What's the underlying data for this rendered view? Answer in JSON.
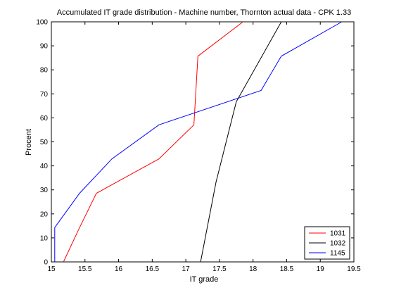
{
  "chart_data": {
    "type": "line",
    "title": "Accumulated IT grade distribution - Machine number, Thornton actual data - CPK 1.33",
    "xlabel": "IT grade",
    "ylabel": "Procent",
    "xlim": [
      15,
      19.5
    ],
    "ylim": [
      0,
      100
    ],
    "xticks": [
      "15",
      "15.5",
      "16",
      "16.5",
      "17",
      "17.5",
      "18",
      "18.5",
      "19",
      "19.5"
    ],
    "yticks": [
      "0",
      "10",
      "20",
      "30",
      "40",
      "50",
      "60",
      "70",
      "80",
      "90",
      "100"
    ],
    "grid": false,
    "legend_position": "bottom-right",
    "series": [
      {
        "name": "1031",
        "color": "#ff0000",
        "points": [
          [
            15.18,
            0
          ],
          [
            15.42,
            14.3
          ],
          [
            15.67,
            28.6
          ],
          [
            16.6,
            42.9
          ],
          [
            17.12,
            57.1
          ],
          [
            17.18,
            85.7
          ],
          [
            17.85,
            100
          ]
        ]
      },
      {
        "name": "1032",
        "color": "#000000",
        "points": [
          [
            17.22,
            0
          ],
          [
            17.45,
            33.3
          ],
          [
            17.75,
            66.7
          ],
          [
            18.42,
            100
          ]
        ]
      },
      {
        "name": "1145",
        "color": "#0000ff",
        "points": [
          [
            15.05,
            0
          ],
          [
            15.05,
            14.3
          ],
          [
            15.42,
            28.6
          ],
          [
            15.9,
            42.9
          ],
          [
            16.6,
            57.1
          ],
          [
            18.12,
            71.4
          ],
          [
            18.42,
            85.7
          ],
          [
            19.32,
            100
          ]
        ]
      }
    ]
  }
}
